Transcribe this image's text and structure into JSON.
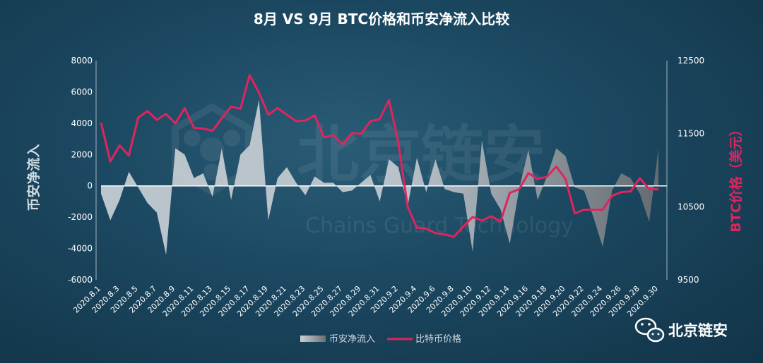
{
  "chart_data": {
    "type": "area+line",
    "title": "8月 VS 9月 BTC价格和币安净流入比较",
    "ylabel_left": "币安净流入",
    "ylabel_right": "BTC价格（美元）",
    "ylim_left": [
      -6000,
      8000
    ],
    "ylim_right": [
      9500,
      12500
    ],
    "yticks_left": [
      8000,
      6000,
      4000,
      2000,
      0,
      -2000,
      -4000,
      -6000
    ],
    "yticks_right": [
      12500,
      11500,
      10500,
      9500
    ],
    "x": [
      "2020.8.1",
      "2020.8.2",
      "2020.8.3",
      "2020.8.4",
      "2020.8.5",
      "2020.8.6",
      "2020.8.7",
      "2020.8.8",
      "2020.8.9",
      "2020.8.10",
      "2020.8.11",
      "2020.8.12",
      "2020.8.13",
      "2020.8.14",
      "2020.8.15",
      "2020.8.16",
      "2020.8.17",
      "2020.8.18",
      "2020.8.19",
      "2020.8.20",
      "2020.8.21",
      "2020.8.22",
      "2020.8.23",
      "2020.8.24",
      "2020.8.25",
      "2020.8.26",
      "2020.8.27",
      "2020.8.28",
      "2020.8.29",
      "2020.8.30",
      "2020.8.31",
      "2020.9.1",
      "2020.9.2",
      "2020.9.3",
      "2020.9.4",
      "2020.9.5",
      "2020.9.6",
      "2020.9.7",
      "2020.9.8",
      "2020.9.9",
      "2020.9.10",
      "2020.9.11",
      "2020.9.12",
      "2020.9.13",
      "2020.9.14",
      "2020.9.15",
      "2020.9.16",
      "2020.9.17",
      "2020.9.18",
      "2020.9.19",
      "2020.9.20",
      "2020.9.21",
      "2020.9.22",
      "2020.9.23",
      "2020.9.24",
      "2020.9.25",
      "2020.9.26",
      "2020.9.27",
      "2020.9.28",
      "2020.9.29",
      "2020.9.30"
    ],
    "xtick_labels": [
      "2020.8.1",
      "2020.8.3",
      "2020.8.5",
      "2020.8.7",
      "2020.8.9",
      "2020.8.11",
      "2020.8.13",
      "2020.8.15",
      "2020.8.17",
      "2020.8.19",
      "2020.8.21",
      "2020.8.23",
      "2020.8.25",
      "2020.8.27",
      "2020.8.29",
      "2020.8.31",
      "2020.9.2",
      "2020.9.4",
      "2020.9.6",
      "2020.9.8",
      "2020.9.10",
      "2020.9.12",
      "2020.9.14",
      "2020.9.16",
      "2020.9.18",
      "2020.9.20",
      "2020.9.22",
      "2020.9.24",
      "2020.9.26",
      "2020.9.28",
      "2020.9.30"
    ],
    "series": [
      {
        "name": "币安净流入",
        "type": "area",
        "values": [
          -500,
          -2200,
          -900,
          900,
          -100,
          -1100,
          -1700,
          -4400,
          2400,
          2000,
          500,
          800,
          -700,
          2400,
          -900,
          2000,
          2600,
          5500,
          -2200,
          500,
          1200,
          200,
          -600,
          600,
          200,
          200,
          -400,
          -300,
          200,
          700,
          -1000,
          1700,
          1200,
          -1300,
          1800,
          -400,
          1700,
          -200,
          -400,
          -500,
          -4200,
          2900,
          -500,
          -1500,
          -3700,
          -200,
          2300,
          -900,
          600,
          2400,
          1900,
          -100,
          -300,
          -2000,
          -3900,
          -300,
          800,
          500,
          -500,
          -2300,
          2400
        ]
      },
      {
        "name": "比特币价格",
        "type": "line",
        "color": "#e0245e",
        "values": [
          11650,
          11120,
          11340,
          11200,
          11720,
          11810,
          11690,
          11770,
          11640,
          11850,
          11580,
          11570,
          11540,
          11710,
          11870,
          11840,
          12300,
          12060,
          11760,
          11850,
          11760,
          11670,
          11680,
          11750,
          11450,
          11480,
          11350,
          11510,
          11500,
          11670,
          11700,
          11960,
          11380,
          10500,
          10210,
          10200,
          10140,
          10120,
          10090,
          10230,
          10360,
          10310,
          10370,
          10300,
          10690,
          10740,
          10960,
          10880,
          10910,
          11050,
          10880,
          10410,
          10460,
          10460,
          10460,
          10650,
          10700,
          10710,
          10890,
          10740,
          10740
        ]
      }
    ],
    "legend_position": "bottom",
    "grid": false
  },
  "watermark": {
    "main": "北京链安",
    "sub": "Chains Guard Technology"
  },
  "brand": {
    "label": "北京链安"
  },
  "colors": {
    "price_line": "#e0245e",
    "zero_line": "#ffffff",
    "axis": "#9fb2bf"
  }
}
